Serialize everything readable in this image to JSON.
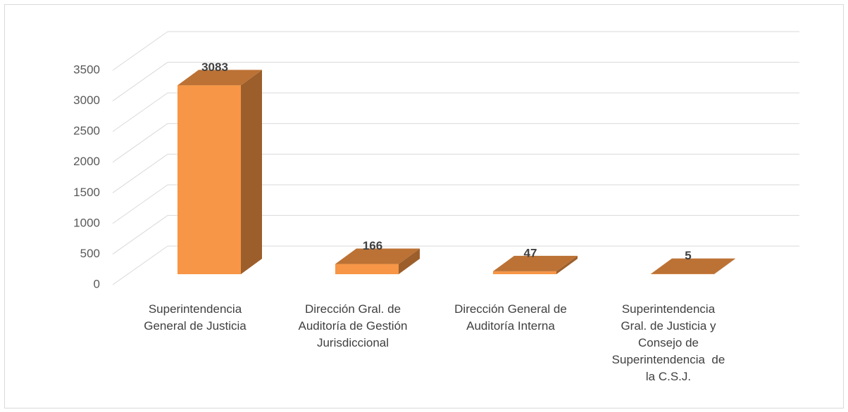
{
  "chart_data": {
    "type": "bar3d",
    "categories": [
      "Superintendencia\nGeneral de Justicia",
      "Dirección Gral. de\nAuditoría de Gestión\nJurisdiccional",
      "Dirección General de\nAuditoría Interna",
      "Superintendencia\nGral. de Justicia y\nConsejo de\nSuperintendencia  de\nla C.S.J."
    ],
    "values": [
      3083,
      166,
      47,
      5
    ],
    "color": "#f79646",
    "ylim": [
      0,
      3500
    ],
    "yticks": [
      0,
      500,
      1000,
      1500,
      2000,
      2500,
      3000,
      3500
    ],
    "grid": true
  }
}
